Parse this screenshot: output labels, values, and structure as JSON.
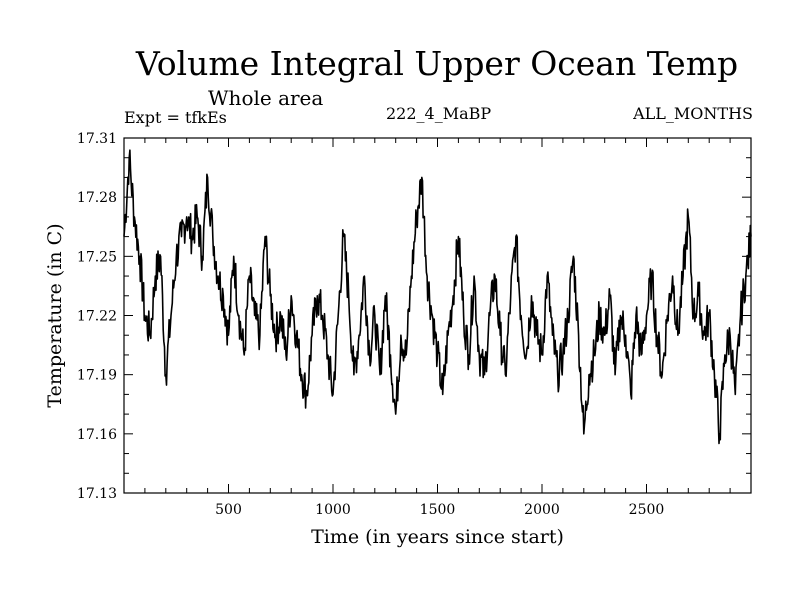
{
  "header": {
    "title": "Volume Integral Upper Ocean Temp",
    "subtitle": "Whole area",
    "experiment": "Expt = tfkEs",
    "run_id": "222_4_MaBP",
    "months": "ALL_MONTHS"
  },
  "chart_data": {
    "type": "line",
    "title": "Volume Integral Upper Ocean Temp",
    "subtitle": "Whole area",
    "xlabel": "Time (in years since start)",
    "ylabel": "Temperature (in C)",
    "xlim": [
      0,
      3000
    ],
    "ylim": [
      17.13,
      17.31
    ],
    "xticks": [
      500,
      1000,
      1500,
      2000,
      2500
    ],
    "xticklabels": [
      "500",
      "1000",
      "1500",
      "2000",
      "2500"
    ],
    "yticks": [
      17.13,
      17.16,
      17.19,
      17.22,
      17.25,
      17.28,
      17.31
    ],
    "yticklabels": [
      "17.13",
      "17.16",
      "17.19",
      "17.22",
      "17.25",
      "17.28",
      "17.31"
    ],
    "grid": false,
    "series": [
      {
        "x": [
          0,
          25,
          50,
          75,
          100,
          125,
          150,
          175,
          200,
          225,
          250,
          275,
          300,
          325,
          350,
          375,
          400,
          425,
          450,
          475,
          500,
          525,
          550,
          575,
          600,
          625,
          650,
          675,
          700,
          725,
          750,
          775,
          800,
          825,
          850,
          875,
          900,
          925,
          950,
          975,
          1000,
          1025,
          1050,
          1075,
          1100,
          1125,
          1150,
          1175,
          1200,
          1225,
          1250,
          1275,
          1300,
          1325,
          1350,
          1375,
          1400,
          1425,
          1450,
          1475,
          1500,
          1525,
          1550,
          1575,
          1600,
          1625,
          1650,
          1675,
          1700,
          1725,
          1750,
          1775,
          1800,
          1825,
          1850,
          1875,
          1900,
          1925,
          1950,
          1975,
          2000,
          2025,
          2050,
          2075,
          2100,
          2125,
          2150,
          2175,
          2200,
          2225,
          2250,
          2275,
          2300,
          2325,
          2350,
          2375,
          2400,
          2425,
          2450,
          2475,
          2500,
          2525,
          2550,
          2575,
          2600,
          2625,
          2650,
          2675,
          2700,
          2725,
          2750,
          2775,
          2800,
          2825,
          2850,
          2875,
          2900,
          2925,
          2950,
          2975,
          3000
        ],
        "values": [
          17.26,
          17.3,
          17.27,
          17.25,
          17.22,
          17.21,
          17.24,
          17.25,
          17.19,
          17.22,
          17.25,
          17.26,
          17.27,
          17.26,
          17.27,
          17.25,
          17.29,
          17.26,
          17.24,
          17.23,
          17.21,
          17.25,
          17.22,
          17.2,
          17.24,
          17.22,
          17.21,
          17.26,
          17.23,
          17.21,
          17.22,
          17.2,
          17.23,
          17.21,
          17.19,
          17.18,
          17.21,
          17.23,
          17.22,
          17.2,
          17.18,
          17.22,
          17.26,
          17.23,
          17.19,
          17.21,
          17.24,
          17.2,
          17.22,
          17.19,
          17.23,
          17.2,
          17.17,
          17.21,
          17.2,
          17.24,
          17.27,
          17.29,
          17.24,
          17.22,
          17.2,
          17.18,
          17.21,
          17.23,
          17.26,
          17.22,
          17.2,
          17.24,
          17.2,
          17.19,
          17.22,
          17.24,
          17.21,
          17.19,
          17.23,
          17.26,
          17.22,
          17.2,
          17.23,
          17.21,
          17.2,
          17.24,
          17.21,
          17.19,
          17.2,
          17.22,
          17.25,
          17.21,
          17.16,
          17.19,
          17.2,
          17.22,
          17.21,
          17.23,
          17.19,
          17.22,
          17.21,
          17.18,
          17.22,
          17.2,
          17.22,
          17.24,
          17.21,
          17.19,
          17.22,
          17.24,
          17.21,
          17.24,
          17.27,
          17.22,
          17.23,
          17.21,
          17.22,
          17.19,
          17.16,
          17.2,
          17.21,
          17.18,
          17.22,
          17.24,
          17.26
        ]
      }
    ]
  }
}
